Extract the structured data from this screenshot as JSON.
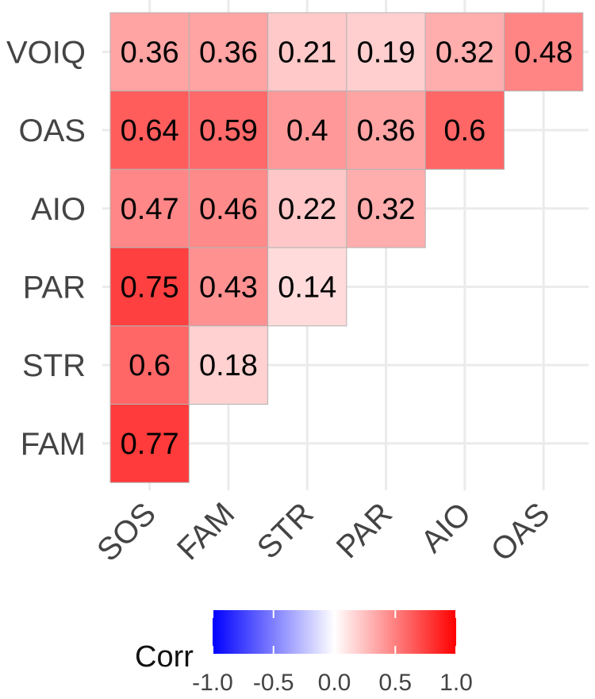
{
  "chart_data": {
    "type": "heatmap",
    "x_labels": [
      "SOS",
      "FAM",
      "STR",
      "PAR",
      "AIO",
      "OAS"
    ],
    "y_labels": [
      "VOIQ",
      "OAS",
      "AIO",
      "PAR",
      "STR",
      "FAM"
    ],
    "cells": [
      {
        "row": "VOIQ",
        "col": "SOS",
        "value": 0.36,
        "label": "0.36"
      },
      {
        "row": "VOIQ",
        "col": "FAM",
        "value": 0.36,
        "label": "0.36"
      },
      {
        "row": "VOIQ",
        "col": "STR",
        "value": 0.21,
        "label": "0.21"
      },
      {
        "row": "VOIQ",
        "col": "PAR",
        "value": 0.19,
        "label": "0.19"
      },
      {
        "row": "VOIQ",
        "col": "AIO",
        "value": 0.32,
        "label": "0.32"
      },
      {
        "row": "VOIQ",
        "col": "OAS",
        "value": 0.48,
        "label": "0.48"
      },
      {
        "row": "OAS",
        "col": "SOS",
        "value": 0.64,
        "label": "0.64"
      },
      {
        "row": "OAS",
        "col": "FAM",
        "value": 0.59,
        "label": "0.59"
      },
      {
        "row": "OAS",
        "col": "STR",
        "value": 0.4,
        "label": "0.4"
      },
      {
        "row": "OAS",
        "col": "PAR",
        "value": 0.36,
        "label": "0.36"
      },
      {
        "row": "OAS",
        "col": "AIO",
        "value": 0.6,
        "label": "0.6"
      },
      {
        "row": "AIO",
        "col": "SOS",
        "value": 0.47,
        "label": "0.47"
      },
      {
        "row": "AIO",
        "col": "FAM",
        "value": 0.46,
        "label": "0.46"
      },
      {
        "row": "AIO",
        "col": "STR",
        "value": 0.22,
        "label": "0.22"
      },
      {
        "row": "AIO",
        "col": "PAR",
        "value": 0.32,
        "label": "0.32"
      },
      {
        "row": "PAR",
        "col": "SOS",
        "value": 0.75,
        "label": "0.75"
      },
      {
        "row": "PAR",
        "col": "FAM",
        "value": 0.43,
        "label": "0.43"
      },
      {
        "row": "PAR",
        "col": "STR",
        "value": 0.14,
        "label": "0.14"
      },
      {
        "row": "STR",
        "col": "SOS",
        "value": 0.6,
        "label": "0.6"
      },
      {
        "row": "STR",
        "col": "FAM",
        "value": 0.18,
        "label": "0.18"
      },
      {
        "row": "FAM",
        "col": "SOS",
        "value": 0.77,
        "label": "0.77"
      }
    ],
    "legend": {
      "title": "Corr",
      "ticks": [
        -1.0,
        -0.5,
        0.0,
        0.5,
        1.0
      ],
      "tick_labels": [
        "-1.0",
        "-0.5",
        "0.0",
        "0.5",
        "1.0"
      ],
      "range": [
        -1,
        1
      ],
      "placement": "bottom"
    },
    "colors": {
      "low": "#0000ff",
      "mid": "#ffffff",
      "high": "#ff0000",
      "grid": "#ebebeb",
      "cell_border": "#b3b3b3",
      "axis_text": "#444444"
    },
    "grid": true
  }
}
